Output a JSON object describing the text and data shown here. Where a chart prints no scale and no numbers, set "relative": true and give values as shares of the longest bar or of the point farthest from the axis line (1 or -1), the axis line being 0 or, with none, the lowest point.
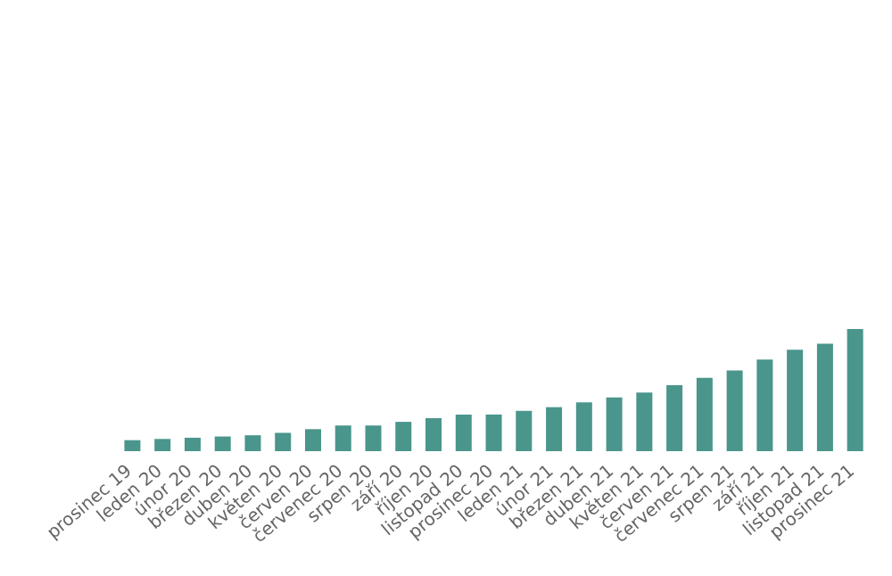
{
  "chart_data": {
    "type": "bar",
    "relative": true,
    "color": "#4a958c",
    "categories": [
      "prosinec 19",
      "leden 20",
      "únor 20",
      "březen 20",
      "duben 20",
      "květen 20",
      "červen 20",
      "červenec 20",
      "srpen 20",
      "září 20",
      "říjen 20",
      "listopad 20",
      "prosinec 20",
      "leden 21",
      "únor 21",
      "březen 21",
      "duben 21",
      "květen 21",
      "červen 21",
      "červenec 21",
      "srpen 21",
      "září 21",
      "říjen 21",
      "listopad 21",
      "prosinec 21"
    ],
    "values": [
      0.09,
      0.1,
      0.11,
      0.12,
      0.13,
      0.15,
      0.18,
      0.21,
      0.21,
      0.24,
      0.27,
      0.3,
      0.3,
      0.33,
      0.36,
      0.4,
      0.44,
      0.48,
      0.54,
      0.6,
      0.66,
      0.75,
      0.83,
      0.88,
      1
    ]
  }
}
